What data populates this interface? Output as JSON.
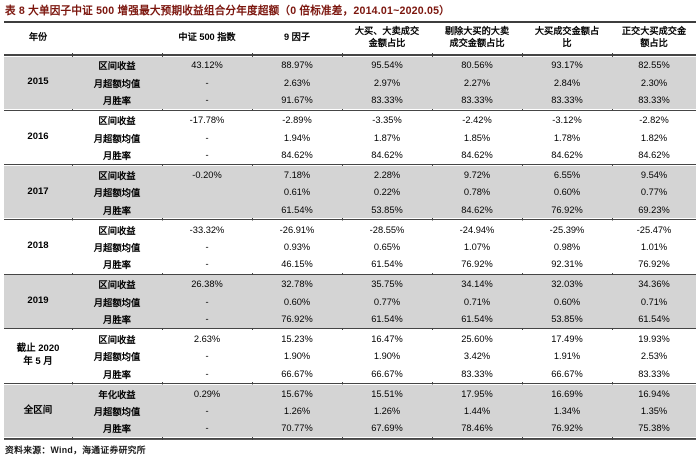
{
  "title": "表 8 大单因子中证 500 增强最大预期收益组合分年度超额（0 倍标准差，2014.01~2020.05）",
  "source": "资料来源：Wind，海通证券研究所",
  "colors": {
    "title_accent": "#7b150d",
    "band_gray": "#d4d4d4",
    "rule": "#454545"
  },
  "table": {
    "columns": [
      "年份",
      "",
      "中证 500 指数",
      "9 因子",
      "大买、大卖成交\n金额占比",
      "剔除大买的大卖\n成交金额占比",
      "大买成交金额占\n比",
      "正交大买成交金\n额占比"
    ],
    "groups": [
      {
        "year": "2015",
        "shaded": true,
        "rows": [
          [
            "区间收益",
            "43.12%",
            "88.97%",
            "95.54%",
            "80.56%",
            "93.17%",
            "82.55%"
          ],
          [
            "月超额均值",
            "-",
            "2.63%",
            "2.97%",
            "2.27%",
            "2.84%",
            "2.30%"
          ],
          [
            "月胜率",
            "-",
            "91.67%",
            "83.33%",
            "83.33%",
            "83.33%",
            "83.33%"
          ]
        ]
      },
      {
        "year": "2016",
        "shaded": false,
        "rows": [
          [
            "区间收益",
            "-17.78%",
            "-2.89%",
            "-3.35%",
            "-2.42%",
            "-3.12%",
            "-2.82%"
          ],
          [
            "月超额均值",
            "-",
            "1.94%",
            "1.87%",
            "1.85%",
            "1.78%",
            "1.82%"
          ],
          [
            "月胜率",
            "-",
            "84.62%",
            "84.62%",
            "84.62%",
            "84.62%",
            "84.62%"
          ]
        ]
      },
      {
        "year": "2017",
        "shaded": true,
        "rows": [
          [
            "区间收益",
            "-0.20%",
            "7.18%",
            "2.28%",
            "9.72%",
            "6.55%",
            "9.54%"
          ],
          [
            "月超额均值",
            "",
            "0.61%",
            "0.22%",
            "0.78%",
            "0.60%",
            "0.77%"
          ],
          [
            "月胜率",
            "",
            "61.54%",
            "53.85%",
            "84.62%",
            "76.92%",
            "69.23%"
          ]
        ]
      },
      {
        "year": "2018",
        "shaded": false,
        "rows": [
          [
            "区间收益",
            "-33.32%",
            "-26.91%",
            "-28.55%",
            "-24.94%",
            "-25.39%",
            "-25.47%"
          ],
          [
            "月超额均值",
            "-",
            "0.93%",
            "0.65%",
            "1.07%",
            "0.98%",
            "1.01%"
          ],
          [
            "月胜率",
            "-",
            "46.15%",
            "61.54%",
            "76.92%",
            "92.31%",
            "76.92%"
          ]
        ]
      },
      {
        "year": "2019",
        "shaded": true,
        "rows": [
          [
            "区间收益",
            "26.38%",
            "32.78%",
            "35.75%",
            "34.14%",
            "32.03%",
            "34.36%"
          ],
          [
            "月超额均值",
            "-",
            "0.60%",
            "0.77%",
            "0.71%",
            "0.60%",
            "0.71%"
          ],
          [
            "月胜率",
            "-",
            "76.92%",
            "61.54%",
            "61.54%",
            "53.85%",
            "61.54%"
          ]
        ]
      },
      {
        "year": "截止 2020\n年 5 月",
        "shaded": false,
        "rows": [
          [
            "区间收益",
            "2.63%",
            "15.23%",
            "16.47%",
            "25.60%",
            "17.49%",
            "19.93%"
          ],
          [
            "月超额均值",
            "-",
            "1.90%",
            "1.90%",
            "3.42%",
            "1.91%",
            "2.53%"
          ],
          [
            "月胜率",
            "-",
            "66.67%",
            "66.67%",
            "83.33%",
            "66.67%",
            "83.33%"
          ]
        ]
      },
      {
        "year": "全区间",
        "shaded": true,
        "rows": [
          [
            "年化收益",
            "0.29%",
            "15.67%",
            "15.51%",
            "17.95%",
            "16.69%",
            "16.94%"
          ],
          [
            "月超额均值",
            "-",
            "1.26%",
            "1.26%",
            "1.44%",
            "1.34%",
            "1.35%"
          ],
          [
            "月胜率",
            "-",
            "70.77%",
            "67.69%",
            "78.46%",
            "76.92%",
            "75.38%"
          ]
        ]
      }
    ]
  }
}
